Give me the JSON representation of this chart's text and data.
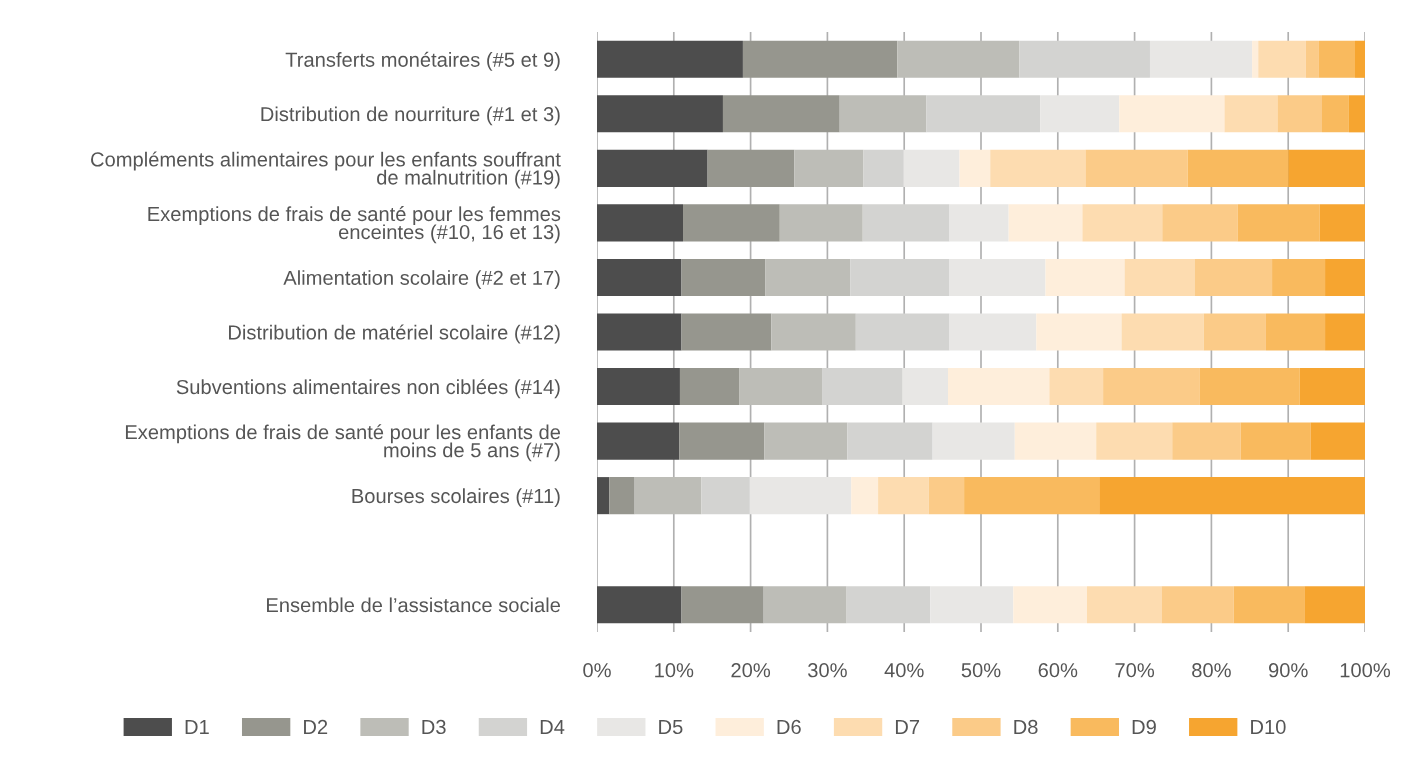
{
  "chart_data": {
    "type": "bar",
    "orientation": "horizontal",
    "stacked": true,
    "categories": [
      "Transferts monétaires (#5 et 9)",
      "Distribution de nourriture (#1 et 3)",
      "Compléments alimentaires pour les enfants souffrant\nde malnutrition (#19)",
      "Exemptions de frais de santé pour les femmes\nenceintes (#10, 16 et 13)",
      "Alimentation scolaire (#2 et 17)",
      "Distribution de matériel scolaire (#12)",
      "Subventions alimentaires non ciblées (#14)",
      "Exemptions de frais de santé pour les enfants de\nmoins de 5 ans (#7)",
      "Bourses scolaires (#11)",
      null,
      "Ensemble de l’assistance sociale"
    ],
    "series": [
      {
        "name": "D1",
        "color": "#4d4d4d",
        "values": [
          19.0,
          16.4,
          14.4,
          11.2,
          11.0,
          11.0,
          10.8,
          10.7,
          1.6,
          null,
          11.0
        ]
      },
      {
        "name": "D2",
        "color": "#96968e",
        "values": [
          20.1,
          15.2,
          11.3,
          12.6,
          10.9,
          11.7,
          7.7,
          11.1,
          3.3,
          null,
          10.7
        ]
      },
      {
        "name": "D3",
        "color": "#bdbdb7",
        "values": [
          15.9,
          11.3,
          9.0,
          10.8,
          11.1,
          11.0,
          10.8,
          10.8,
          8.7,
          null,
          10.8
        ]
      },
      {
        "name": "D4",
        "color": "#d3d3d1",
        "values": [
          17.0,
          14.8,
          5.2,
          11.3,
          12.9,
          12.2,
          10.5,
          11.1,
          6.3,
          null,
          10.9
        ]
      },
      {
        "name": "D5",
        "color": "#e8e7e5",
        "values": [
          13.3,
          10.3,
          7.3,
          7.7,
          12.5,
          11.3,
          5.9,
          10.7,
          13.2,
          null,
          10.8
        ]
      },
      {
        "name": "D6",
        "color": "#feeedb",
        "values": [
          0.8,
          13.7,
          4.0,
          9.6,
          10.3,
          11.1,
          13.2,
          10.6,
          3.5,
          null,
          9.6
        ]
      },
      {
        "name": "D7",
        "color": "#fddcb0",
        "values": [
          6.2,
          6.9,
          12.4,
          10.4,
          9.1,
          10.7,
          7.0,
          9.9,
          6.6,
          null,
          9.7
        ]
      },
      {
        "name": "D8",
        "color": "#fbcb88",
        "values": [
          1.7,
          5.8,
          13.3,
          9.8,
          10.1,
          8.1,
          12.6,
          8.9,
          4.6,
          null,
          9.4
        ]
      },
      {
        "name": "D9",
        "color": "#f9ba5e",
        "values": [
          4.7,
          3.5,
          13.1,
          10.7,
          6.9,
          7.7,
          13.0,
          9.1,
          17.6,
          null,
          9.2
        ]
      },
      {
        "name": "D10",
        "color": "#f6a530",
        "values": [
          1.3,
          2.1,
          10.0,
          5.9,
          5.2,
          5.2,
          8.5,
          7.1,
          34.6,
          null,
          7.9
        ]
      }
    ],
    "xlim": [
      0,
      100
    ],
    "xticks": [
      {
        "value": 0,
        "label": "0%"
      },
      {
        "value": 10,
        "label": "10%"
      },
      {
        "value": 20,
        "label": "20%"
      },
      {
        "value": 30,
        "label": "30%"
      },
      {
        "value": 40,
        "label": "40%"
      },
      {
        "value": 50,
        "label": "50%"
      },
      {
        "value": 60,
        "label": "60%"
      },
      {
        "value": 70,
        "label": "70%"
      },
      {
        "value": 80,
        "label": "80%"
      },
      {
        "value": 90,
        "label": "90%"
      },
      {
        "value": 100,
        "label": "100%"
      }
    ],
    "grid": "x",
    "legend": "bottom"
  }
}
